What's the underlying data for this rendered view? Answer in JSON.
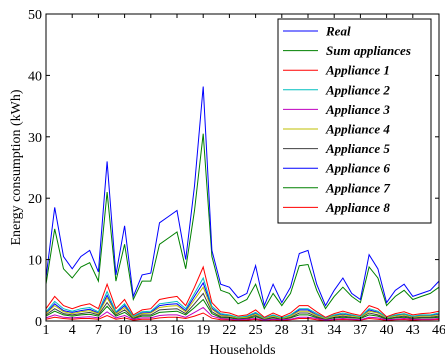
{
  "chart_data": {
    "type": "line",
    "title": "",
    "xlabel": "Households",
    "ylabel": "Energy consumption (kWh)",
    "xlim": [
      1,
      46
    ],
    "ylim": [
      0,
      50
    ],
    "x_ticks": [
      1,
      4,
      7,
      10,
      13,
      16,
      19,
      22,
      25,
      28,
      31,
      34,
      37,
      40,
      43,
      46
    ],
    "y_ticks": [
      0,
      10,
      20,
      30,
      40,
      50
    ],
    "grid": false,
    "legend_position": "top-right",
    "x": [
      1,
      2,
      3,
      4,
      5,
      6,
      7,
      8,
      9,
      10,
      11,
      12,
      13,
      14,
      15,
      16,
      17,
      18,
      19,
      20,
      21,
      22,
      23,
      24,
      25,
      26,
      27,
      28,
      29,
      30,
      31,
      32,
      33,
      34,
      35,
      36,
      37,
      38,
      39,
      40,
      41,
      42,
      43,
      44,
      45,
      46
    ],
    "series": [
      {
        "name": "Real",
        "color": "#0000ff",
        "values": [
          7,
          18.5,
          10.5,
          8.5,
          10.5,
          11.5,
          8,
          26,
          7.5,
          15.5,
          4,
          7.5,
          7.8,
          16,
          17,
          18,
          10,
          22,
          38.2,
          11.5,
          6,
          5.5,
          3.8,
          4.5,
          9,
          2.5,
          6,
          3,
          5.5,
          11,
          11.5,
          6,
          2.5,
          5,
          7,
          4.5,
          3.5,
          10.8,
          8.5,
          3,
          5,
          6,
          4,
          4.5,
          5,
          6.5
        ]
      },
      {
        "name": "Sum appliances",
        "color": "#008000",
        "values": [
          6,
          15,
          8.5,
          7,
          8.8,
          9.5,
          6.5,
          21,
          6.5,
          12.5,
          3.5,
          6.5,
          6.5,
          12.5,
          13.5,
          14.5,
          8.5,
          18,
          30.5,
          10.5,
          5,
          4.5,
          2.8,
          3.5,
          6,
          2,
          4.5,
          2.5,
          4.5,
          9,
          9.2,
          5,
          2,
          4,
          5.5,
          4,
          3,
          8.8,
          7,
          2.5,
          4,
          5,
          3.5,
          4,
          4.5,
          5.5
        ]
      },
      {
        "name": "Appliance 1",
        "color": "#ff0000",
        "values": [
          2,
          4,
          2.5,
          2,
          2.5,
          2.8,
          2,
          6,
          2,
          3.5,
          1,
          1.8,
          2,
          3.5,
          3.8,
          4,
          2.5,
          5.5,
          8.8,
          3,
          1.5,
          1.3,
          0.8,
          1,
          1.8,
          0.6,
          1.3,
          0.7,
          1.3,
          2.5,
          2.5,
          1.5,
          0.6,
          1.2,
          1.6,
          1.2,
          0.9,
          2.5,
          2,
          0.7,
          1.2,
          1.5,
          1,
          1.2,
          1.3,
          1.6
        ]
      },
      {
        "name": "Appliance 2",
        "color": "#00bfbf",
        "values": [
          1.5,
          3.2,
          2,
          1.6,
          2,
          2.2,
          1.5,
          4.8,
          1.5,
          2.8,
          0.8,
          1.5,
          1.6,
          2.8,
          3,
          3.2,
          2,
          4.5,
          7,
          2.4,
          1.2,
          1,
          0.6,
          0.8,
          1.4,
          0.5,
          1,
          0.5,
          1,
          2,
          2,
          1.2,
          0.5,
          1,
          1.3,
          1,
          0.7,
          2,
          1.6,
          0.6,
          1,
          1.2,
          0.8,
          1,
          1,
          1.3
        ]
      },
      {
        "name": "Appliance 3",
        "color": "#bf00bf",
        "values": [
          0.5,
          1,
          0.6,
          0.5,
          0.6,
          0.7,
          0.5,
          1.5,
          0.5,
          0.9,
          0.3,
          0.5,
          0.5,
          0.9,
          1,
          1,
          0.6,
          1.4,
          2.2,
          0.8,
          0.4,
          0.3,
          0.2,
          0.3,
          0.4,
          0.15,
          0.3,
          0.2,
          0.3,
          0.6,
          0.6,
          0.4,
          0.15,
          0.3,
          0.4,
          0.3,
          0.2,
          0.6,
          0.5,
          0.2,
          0.3,
          0.4,
          0.3,
          0.3,
          0.3,
          0.4
        ]
      },
      {
        "name": "Appliance 4",
        "color": "#bfbf00",
        "values": [
          1.2,
          2.5,
          1.5,
          1.2,
          1.5,
          1.7,
          1.2,
          3.8,
          1.2,
          2.2,
          0.6,
          1.2,
          1.3,
          2.2,
          2.4,
          2.5,
          1.5,
          3.5,
          5.5,
          1.9,
          0.9,
          0.8,
          0.5,
          0.6,
          1.1,
          0.4,
          0.8,
          0.4,
          0.8,
          1.6,
          1.6,
          0.9,
          0.4,
          0.8,
          1,
          0.8,
          0.6,
          1.6,
          1.3,
          0.5,
          0.8,
          1,
          0.6,
          0.8,
          0.8,
          1
        ]
      },
      {
        "name": "Appliance 5",
        "color": "#404040",
        "values": [
          1,
          2,
          1.2,
          1,
          1.2,
          1.4,
          1,
          3,
          1,
          1.8,
          0.5,
          1,
          1,
          1.8,
          1.9,
          2,
          1.2,
          2.8,
          4.5,
          1.5,
          0.7,
          0.6,
          0.4,
          0.5,
          0.9,
          0.3,
          0.6,
          0.3,
          0.6,
          1.3,
          1.3,
          0.7,
          0.3,
          0.6,
          0.8,
          0.6,
          0.5,
          1.3,
          1,
          0.4,
          0.6,
          0.8,
          0.5,
          0.6,
          0.6,
          0.8
        ]
      },
      {
        "name": "Appliance 6",
        "color": "#0000ff",
        "values": [
          1.3,
          2.8,
          1.7,
          1.4,
          1.7,
          1.9,
          1.3,
          4.2,
          1.3,
          2.5,
          0.7,
          1.3,
          1.4,
          2.5,
          2.7,
          2.8,
          1.7,
          4,
          6.2,
          2.1,
          1,
          0.9,
          0.55,
          0.7,
          1.2,
          0.45,
          0.9,
          0.45,
          0.9,
          1.8,
          1.8,
          1,
          0.45,
          0.9,
          1.1,
          0.9,
          0.65,
          1.8,
          1.4,
          0.55,
          0.9,
          1.1,
          0.7,
          0.9,
          0.9,
          1.1
        ]
      },
      {
        "name": "Appliance 7",
        "color": "#008000",
        "values": [
          0.8,
          1.6,
          1,
          0.8,
          1,
          1.1,
          0.8,
          2.4,
          0.8,
          1.4,
          0.4,
          0.8,
          0.8,
          1.4,
          1.5,
          1.6,
          1,
          2.2,
          3.5,
          1.2,
          0.55,
          0.5,
          0.3,
          0.4,
          0.7,
          0.25,
          0.5,
          0.25,
          0.5,
          1,
          1,
          0.55,
          0.25,
          0.5,
          0.6,
          0.5,
          0.4,
          1,
          0.8,
          0.3,
          0.5,
          0.6,
          0.4,
          0.5,
          0.5,
          0.6
        ]
      },
      {
        "name": "Appliance 8",
        "color": "#ff0000",
        "values": [
          0.3,
          0.6,
          0.4,
          0.3,
          0.4,
          0.4,
          0.3,
          0.9,
          0.3,
          0.5,
          0.15,
          0.3,
          0.3,
          0.5,
          0.6,
          0.6,
          0.4,
          0.8,
          1.3,
          0.45,
          0.2,
          0.2,
          0.1,
          0.15,
          0.25,
          0.1,
          0.2,
          0.1,
          0.2,
          0.4,
          0.4,
          0.2,
          0.1,
          0.2,
          0.25,
          0.2,
          0.15,
          0.4,
          0.3,
          0.1,
          0.2,
          0.25,
          0.15,
          0.2,
          0.2,
          0.25
        ]
      }
    ]
  }
}
